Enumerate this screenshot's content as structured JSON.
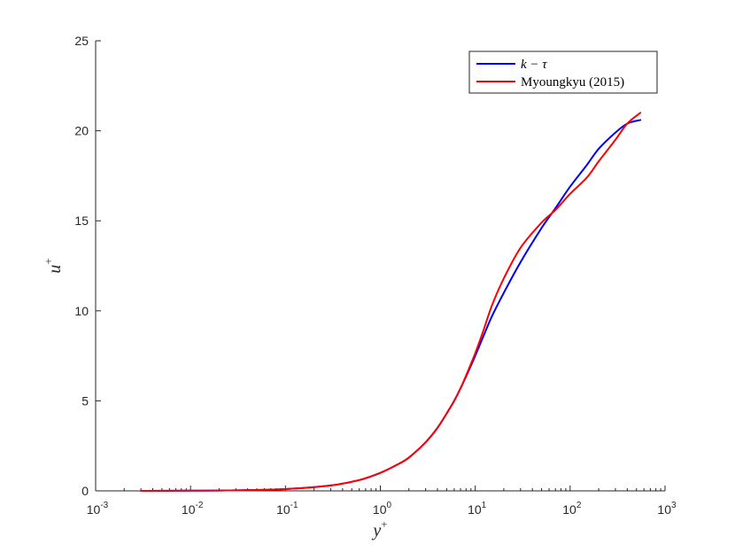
{
  "chart_data": {
    "type": "line",
    "xscale": "log",
    "xlim": [
      0.001,
      1000
    ],
    "ylim": [
      0,
      25
    ],
    "xlabel": {
      "base": "y",
      "sup": "+"
    },
    "ylabel": {
      "base": "u",
      "sup": "+"
    },
    "xticks": [
      {
        "value": 0.001,
        "base": "10",
        "exp": "-3"
      },
      {
        "value": 0.01,
        "base": "10",
        "exp": "-2"
      },
      {
        "value": 0.1,
        "base": "10",
        "exp": "-1"
      },
      {
        "value": 1,
        "base": "10",
        "exp": "0"
      },
      {
        "value": 10,
        "base": "10",
        "exp": "1"
      },
      {
        "value": 100,
        "base": "10",
        "exp": "2"
      },
      {
        "value": 1000,
        "base": "10",
        "exp": "3"
      }
    ],
    "yticks": [
      {
        "value": 0,
        "label": "0"
      },
      {
        "value": 5,
        "label": "5"
      },
      {
        "value": 10,
        "label": "10"
      },
      {
        "value": 15,
        "label": "15"
      },
      {
        "value": 20,
        "label": "20"
      },
      {
        "value": 25,
        "label": "25"
      }
    ],
    "grid": false,
    "legend_position": "top-right",
    "series": [
      {
        "name": "k − τ",
        "color": "#0000ff",
        "x": [
          0.003,
          0.01,
          0.03,
          0.1,
          0.3,
          0.6,
          1,
          1.5,
          2,
          3,
          4,
          5,
          6,
          7,
          8,
          9,
          10,
          12,
          15,
          20,
          30,
          50,
          70,
          100,
          150,
          200,
          300,
          400,
          550
        ],
        "y": [
          0.003,
          0.01,
          0.03,
          0.1,
          0.3,
          0.6,
          1.0,
          1.45,
          1.85,
          2.7,
          3.5,
          4.3,
          5.0,
          5.7,
          6.35,
          6.95,
          7.5,
          8.5,
          9.7,
          11.0,
          12.7,
          14.6,
          15.7,
          16.9,
          18.1,
          19.0,
          19.9,
          20.4,
          20.6
        ]
      },
      {
        "name": "Myoungkyu (2015)",
        "color": "#ff0000",
        "x": [
          0.003,
          0.01,
          0.03,
          0.1,
          0.3,
          0.6,
          1,
          1.5,
          2,
          3,
          4,
          5,
          6,
          7,
          8,
          9,
          10,
          12,
          15,
          20,
          30,
          50,
          70,
          100,
          150,
          200,
          300,
          400,
          550
        ],
        "y": [
          0.003,
          0.01,
          0.03,
          0.1,
          0.3,
          0.6,
          1.0,
          1.45,
          1.85,
          2.7,
          3.5,
          4.3,
          5.0,
          5.7,
          6.4,
          7.05,
          7.65,
          8.8,
          10.3,
          11.8,
          13.5,
          14.9,
          15.6,
          16.5,
          17.4,
          18.3,
          19.5,
          20.4,
          21.0
        ]
      }
    ]
  }
}
